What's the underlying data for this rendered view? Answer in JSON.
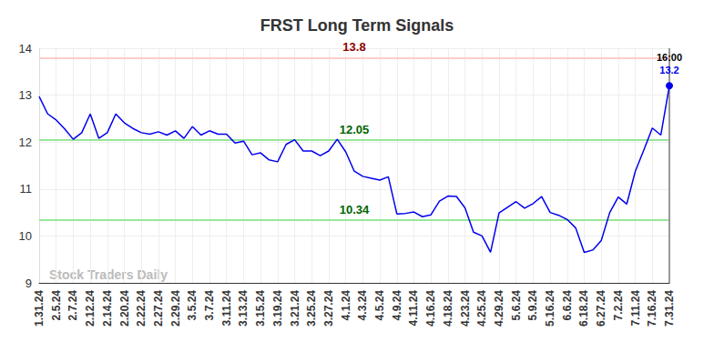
{
  "chart_data": {
    "type": "line",
    "title": "FRST Long Term Signals",
    "watermark": "Stock Traders Daily",
    "color": "#0000ee",
    "grid": true,
    "categories": [
      "1.31.24",
      null,
      "2.5.24",
      null,
      "2.7.24",
      null,
      "2.12.24",
      null,
      "2.14.24",
      null,
      "2.20.24",
      null,
      "2.22.24",
      null,
      "2.27.24",
      null,
      "2.29.24",
      null,
      "3.5.24",
      null,
      "3.7.24",
      null,
      "3.11.24",
      null,
      "3.13.24",
      null,
      "3.15.24",
      null,
      "3.19.24",
      null,
      "3.21.24",
      null,
      "3.25.24",
      null,
      "3.27.24",
      null,
      "4.1.24",
      null,
      "4.3.24",
      null,
      "4.5.24",
      null,
      "4.9.24",
      null,
      "4.11.24",
      null,
      "4.16.24",
      null,
      "4.18.24",
      null,
      "4.23.24",
      null,
      "4.25.24",
      null,
      "4.29.24",
      null,
      "5.6.24",
      null,
      "5.9.24",
      null,
      "5.16.24",
      null,
      "6.6.24",
      null,
      "6.18.24",
      null,
      "6.27.24",
      null,
      "7.2.24",
      null,
      "7.11.24",
      null,
      "7.16.24",
      null,
      "7.31.24"
    ],
    "values": [
      12.97,
      12.6,
      12.47,
      12.28,
      12.06,
      12.2,
      12.6,
      12.08,
      12.2,
      12.6,
      12.41,
      12.29,
      12.2,
      12.17,
      12.22,
      12.15,
      12.24,
      12.08,
      12.33,
      12.15,
      12.24,
      12.17,
      12.17,
      11.98,
      12.02,
      11.73,
      11.77,
      11.62,
      11.58,
      11.95,
      12.05,
      11.81,
      11.81,
      11.71,
      11.81,
      12.06,
      11.79,
      11.38,
      11.27,
      11.23,
      11.19,
      11.26,
      10.47,
      10.48,
      10.51,
      10.41,
      10.45,
      10.74,
      10.85,
      10.84,
      10.6,
      10.08,
      10.0,
      9.65,
      10.49,
      10.61,
      10.73,
      10.59,
      10.69,
      10.84,
      10.5,
      10.44,
      10.35,
      10.17,
      9.65,
      9.7,
      9.9,
      10.5,
      10.83,
      10.68,
      11.38,
      11.83,
      12.3,
      12.15,
      13.2
    ],
    "ylim": [
      9,
      14
    ],
    "yticks": [
      9,
      10,
      11,
      12,
      13,
      14
    ],
    "last_point_time": "16:00",
    "signals": [
      {
        "value": 13.8,
        "label": "13.8",
        "line_color": "#ffcccc",
        "label_color": "#8b0000"
      },
      {
        "value": 12.05,
        "label": "12.05",
        "line_color": "#99e699",
        "label_color": "#006400"
      },
      {
        "value": 10.34,
        "label": "10.34",
        "line_color": "#99e699",
        "label_color": "#006400"
      }
    ]
  }
}
